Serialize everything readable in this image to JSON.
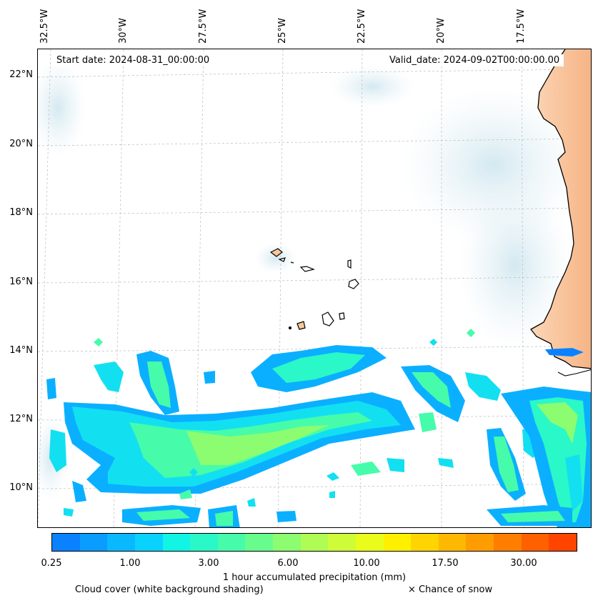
{
  "map": {
    "start_date": "Start date: 2024-08-31_00:00:00",
    "valid_date": "Valid_date: 2024-09-02T00:00:00.00",
    "longitude_labels": [
      "32.5°W",
      "30°W",
      "27.5°W",
      "25°W",
      "22.5°W",
      "20°W",
      "17.5°W"
    ],
    "latitude_labels": [
      "22°N",
      "20°N",
      "18°N",
      "16°N",
      "14°N",
      "12°N",
      "10°N"
    ],
    "region": "Cabo Verde and West African coast (Senegal, Mauritania, Gambia, Guinea-Bissau)",
    "layers": [
      "cloud cover (white background shading)",
      "1 hour accumulated precipitation",
      "land temperature shading (orange)"
    ]
  },
  "colorbar": {
    "tick_labels": [
      "0.25",
      "1.00",
      "3.00",
      "6.00",
      "10.00",
      "17.50",
      "30.00"
    ],
    "label": "1 hour accumulated precipitation (mm)",
    "colors": [
      "#0a82ff",
      "#0a9cff",
      "#0ab8ff",
      "#0ad2ff",
      "#12f4e4",
      "#2af8c8",
      "#46fcaa",
      "#68fc8c",
      "#8cfc70",
      "#aefc54",
      "#cefc38",
      "#eafc1c",
      "#fff000",
      "#ffd400",
      "#ffb800",
      "#ff9c00",
      "#ff7e00",
      "#ff6000",
      "#ff4400"
    ]
  },
  "legend": {
    "cloud_cover": "Cloud cover (white background shading)",
    "snow": "× Chance of snow"
  }
}
